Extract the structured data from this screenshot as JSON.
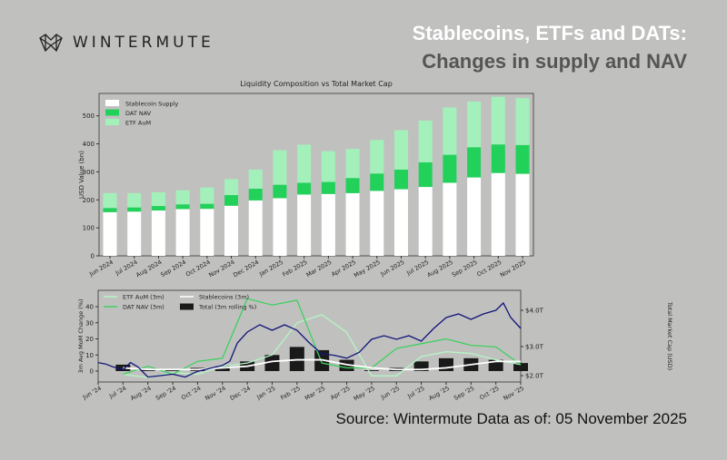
{
  "header": {
    "brand": "WINTERMUTE",
    "title_line1": "Stablecoins, ETFs and DATs:",
    "title_line2": "Changes in supply and NAV"
  },
  "footer": {
    "source": "Source: Wintermute  Data as of: 05 November 2025"
  },
  "colors": {
    "background": "#c0c1bf",
    "stablecoin": "#ffffff",
    "dat": "#22d15a",
    "etf": "#a4f0bb",
    "dat_line": "#3fcf5f",
    "etf_line": "#b5f5c5",
    "stable_line": "#ffffff",
    "total_bar": "#1a1a1a",
    "market_cap": "#14147a"
  },
  "chart_data": [
    {
      "type": "bar",
      "stacked": true,
      "title": "Liquidity Composition vs Total Market Cap",
      "ylabel": "USD Value (bn)",
      "ylim": [
        0,
        580
      ],
      "yticks": [
        0,
        100,
        200,
        300,
        400,
        500
      ],
      "legend": "top-left",
      "categories": [
        "Jun 2024",
        "Jul 2024",
        "Aug 2024",
        "Sep 2024",
        "Oct 2024",
        "Nov 2024",
        "Dec 2024",
        "Jan 2025",
        "Feb 2025",
        "Mar 2025",
        "Apr 2025",
        "May 2025",
        "Jun 2025",
        "Jul 2025",
        "Aug 2025",
        "Sep 2025",
        "Oct 2025",
        "Nov 2025"
      ],
      "series": [
        {
          "name": "Stablecoin Supply",
          "values": [
            156,
            158,
            162,
            167,
            168,
            179,
            198,
            206,
            219,
            221,
            224,
            232,
            238,
            246,
            261,
            280,
            296,
            293
          ]
        },
        {
          "name": "DAT NAV",
          "values": [
            15,
            15,
            16,
            17,
            18,
            38,
            42,
            48,
            42,
            43,
            54,
            62,
            70,
            88,
            100,
            108,
            102,
            103
          ]
        },
        {
          "name": "ETF AuM",
          "values": [
            53,
            51,
            49,
            50,
            58,
            57,
            68,
            123,
            136,
            110,
            104,
            120,
            141,
            149,
            169,
            163,
            170,
            167
          ]
        }
      ]
    },
    {
      "type": "line",
      "ylabel": "3m Avg MoM Change (%)",
      "y2label": "Total Market Cap (USD)",
      "ylim": [
        -7,
        50
      ],
      "yticks": [
        0,
        10,
        20,
        30,
        40
      ],
      "y2ticks": [
        "$2.0T",
        "$3.0T",
        "$4.0T"
      ],
      "legend": "top-left",
      "xticks": [
        "Jun '24",
        "Jul '24",
        "Aug '24",
        "Sep '24",
        "Oct '24",
        "Nov '24",
        "Dec '24",
        "Jan '25",
        "Feb '25",
        "Mar '25",
        "Apr '25",
        "May '25",
        "Jun '25",
        "Jul '25",
        "Aug '25",
        "Sep '25",
        "Oct '25",
        "Nov '25"
      ],
      "months": [
        "Jul '24",
        "Aug '24",
        "Sep '24",
        "Oct '24",
        "Nov '24",
        "Dec '24",
        "Jan '25",
        "Feb '25",
        "Mar '25",
        "Apr '25",
        "May '25",
        "Jun '25",
        "Jul '25",
        "Aug '25",
        "Sep '25",
        "Oct '25",
        "Nov '25"
      ],
      "series": [
        {
          "name": "ETF AuM (3m)",
          "values": [
            -2,
            -4,
            -1,
            -2,
            3,
            5,
            10,
            30,
            35,
            24,
            -3,
            -3,
            9,
            12,
            11,
            7,
            4
          ]
        },
        {
          "name": "DAT NAV (3m)",
          "values": [
            -2,
            3,
            -2,
            6,
            8,
            45,
            41,
            44,
            5,
            2,
            2,
            14,
            17,
            20,
            16,
            15,
            4
          ]
        },
        {
          "name": "Stablecoins (3m)",
          "values": [
            2,
            1,
            1,
            1,
            2,
            3,
            6,
            7,
            7,
            4,
            2,
            1,
            1,
            2,
            4,
            6,
            6
          ]
        },
        {
          "name": "Total (3m rolling %)",
          "type": "bar",
          "values": [
            4,
            1,
            1,
            2,
            3,
            6,
            10,
            15,
            13,
            7,
            0.5,
            2,
            6,
            8,
            8,
            7,
            5
          ]
        }
      ],
      "market_cap": {
        "unit": "T USD",
        "x_months": [
          0,
          0.3,
          0.6,
          1,
          1.3,
          1.6,
          2,
          2.5,
          3,
          3.5,
          4,
          4.5,
          5,
          5.3,
          5.6,
          6,
          6.5,
          7,
          7.5,
          8,
          8.5,
          9,
          9.5,
          10,
          10.5,
          11,
          11.5,
          12,
          12.5,
          13,
          13.5,
          14,
          14.5,
          15,
          15.5,
          16,
          16.3,
          16.6,
          17
        ],
        "values": [
          2.45,
          2.4,
          2.3,
          2.2,
          2.45,
          2.3,
          1.95,
          2.0,
          2.05,
          1.95,
          2.15,
          2.25,
          2.35,
          2.5,
          3.1,
          3.4,
          3.6,
          3.45,
          3.6,
          3.45,
          3.1,
          2.75,
          2.7,
          2.6,
          2.8,
          3.2,
          3.3,
          3.2,
          3.3,
          3.15,
          3.5,
          3.8,
          3.9,
          3.75,
          3.9,
          4.0,
          4.2,
          3.8,
          3.5
        ]
      }
    }
  ]
}
